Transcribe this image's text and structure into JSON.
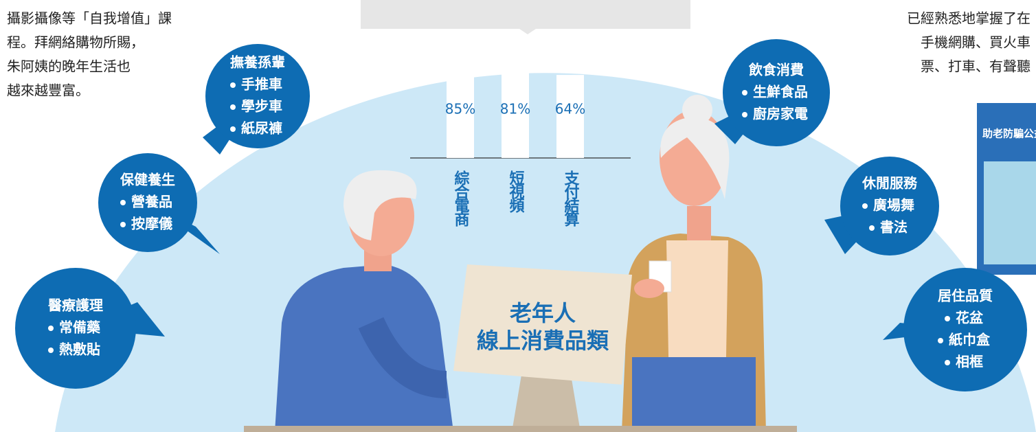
{
  "left_text": [
    "攝影攝像等「自我增值」課",
    "程。拜網絡購物所賜，",
    "朱阿姨的晚年生活也",
    "越來越豐富。"
  ],
  "right_text": [
    "已經熟悉地掌握了在",
    "手機網購、買火車",
    "票、打車、有聲聽"
  ],
  "photo_text": "助老防騙公益",
  "monitor_title": [
    "老年人",
    "線上消費品類"
  ],
  "bubbles": [
    {
      "title": "撫養孫輩",
      "items": [
        "手推車",
        "學步車",
        "紙尿褲"
      ]
    },
    {
      "title": "保健養生",
      "items": [
        "營養品",
        "按摩儀"
      ]
    },
    {
      "title": "醫療護理",
      "items": [
        "常備藥",
        "熱敷貼"
      ]
    },
    {
      "title": "飲食消費",
      "items": [
        "生鮮食品",
        "廚房家電"
      ]
    },
    {
      "title": "休閒服務",
      "items": [
        "廣場舞",
        "書法"
      ]
    },
    {
      "title": "居住品質",
      "items": [
        "花盆",
        "紙巾盒",
        "相框"
      ]
    }
  ],
  "chart_data": {
    "type": "bar",
    "categories": [
      "綜合電商",
      "短視頻",
      "支付結算"
    ],
    "values": [
      85,
      81,
      64
    ],
    "value_labels": [
      "85%",
      "81%",
      "64%"
    ],
    "color": "#ffffff",
    "label_color": "#1a6fb5",
    "ylim": [
      0,
      90
    ]
  }
}
